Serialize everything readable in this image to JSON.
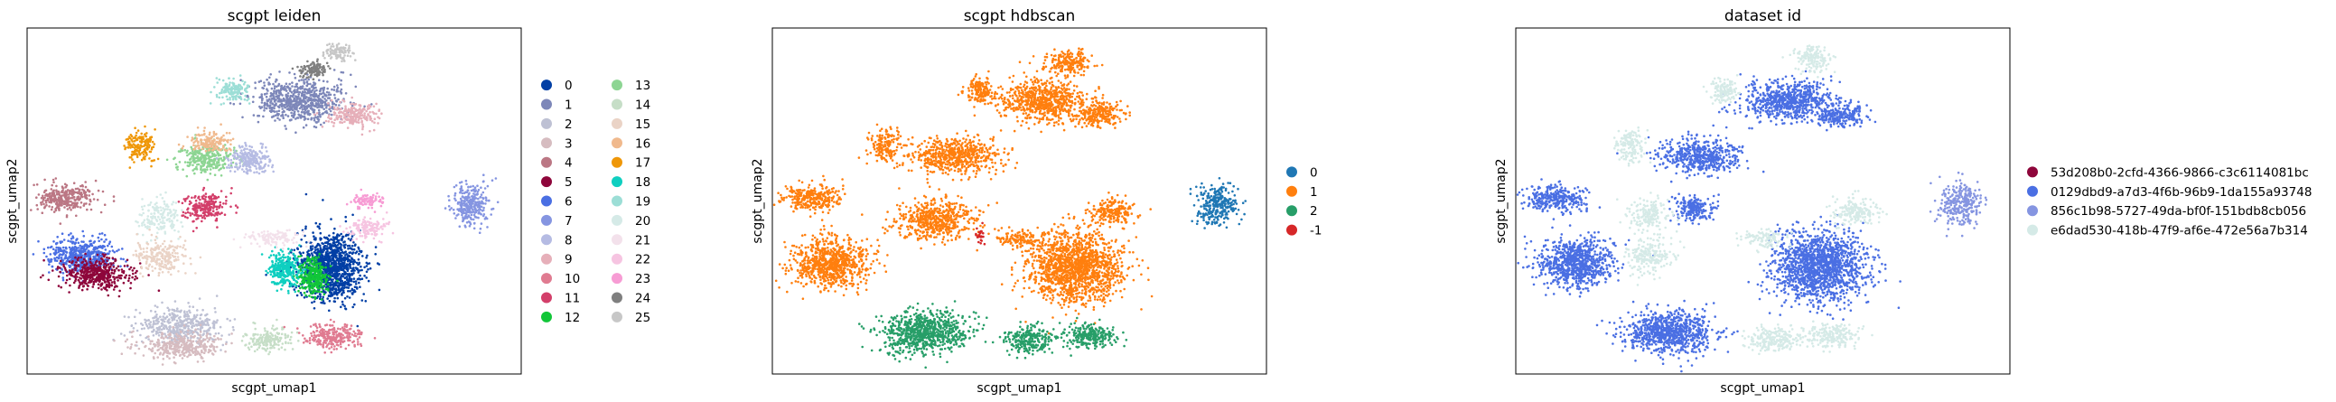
{
  "chart_data": [
    {
      "type": "scatter",
      "title": "scgpt leiden",
      "xlabel": "scgpt_umap1",
      "ylabel": "scgpt_umap2",
      "legend_position": "right",
      "legend_columns": 2,
      "categories": [
        {
          "label": "0",
          "color": "#023fa5"
        },
        {
          "label": "1",
          "color": "#7d87b9"
        },
        {
          "label": "2",
          "color": "#bec1d4"
        },
        {
          "label": "3",
          "color": "#d6bcc0"
        },
        {
          "label": "4",
          "color": "#bb7784"
        },
        {
          "label": "5",
          "color": "#8e063b"
        },
        {
          "label": "6",
          "color": "#4a6fe3"
        },
        {
          "label": "7",
          "color": "#8595e1"
        },
        {
          "label": "8",
          "color": "#b5bbe3"
        },
        {
          "label": "9",
          "color": "#e6afb9"
        },
        {
          "label": "10",
          "color": "#e07b91"
        },
        {
          "label": "11",
          "color": "#d33f6a"
        },
        {
          "label": "12",
          "color": "#11c638"
        },
        {
          "label": "13",
          "color": "#8dd593"
        },
        {
          "label": "14",
          "color": "#c6dec7"
        },
        {
          "label": "15",
          "color": "#ead3c6"
        },
        {
          "label": "16",
          "color": "#f0b98d"
        },
        {
          "label": "17",
          "color": "#ef9708"
        },
        {
          "label": "18",
          "color": "#0fcfc0"
        },
        {
          "label": "19",
          "color": "#9cded6"
        },
        {
          "label": "20",
          "color": "#d5eae7"
        },
        {
          "label": "21",
          "color": "#f3e1eb"
        },
        {
          "label": "22",
          "color": "#f6c4e1"
        },
        {
          "label": "23",
          "color": "#f79cd4"
        },
        {
          "label": "24",
          "color": "#7f7f7f"
        },
        {
          "label": "25",
          "color": "#c7c7c7"
        }
      ],
      "clusters": [
        {
          "c": 0,
          "x": 0.615,
          "y": 0.69,
          "rx": 0.065,
          "ry": 0.1,
          "n": 1100
        },
        {
          "c": 12,
          "x": 0.58,
          "y": 0.72,
          "rx": 0.03,
          "ry": 0.05,
          "n": 300
        },
        {
          "c": 18,
          "x": 0.52,
          "y": 0.7,
          "rx": 0.03,
          "ry": 0.05,
          "n": 300
        },
        {
          "c": 6,
          "x": 0.11,
          "y": 0.66,
          "rx": 0.065,
          "ry": 0.05,
          "n": 500
        },
        {
          "c": 5,
          "x": 0.14,
          "y": 0.71,
          "rx": 0.07,
          "ry": 0.045,
          "n": 450
        },
        {
          "c": 2,
          "x": 0.31,
          "y": 0.86,
          "rx": 0.09,
          "ry": 0.05,
          "n": 450
        },
        {
          "c": 3,
          "x": 0.31,
          "y": 0.92,
          "rx": 0.08,
          "ry": 0.035,
          "n": 350
        },
        {
          "c": 14,
          "x": 0.49,
          "y": 0.9,
          "rx": 0.045,
          "ry": 0.035,
          "n": 180
        },
        {
          "c": 10,
          "x": 0.62,
          "y": 0.89,
          "rx": 0.055,
          "ry": 0.035,
          "n": 250
        },
        {
          "c": 1,
          "x": 0.55,
          "y": 0.21,
          "rx": 0.09,
          "ry": 0.06,
          "n": 700
        },
        {
          "c": 9,
          "x": 0.66,
          "y": 0.25,
          "rx": 0.05,
          "ry": 0.035,
          "n": 220
        },
        {
          "c": 19,
          "x": 0.42,
          "y": 0.18,
          "rx": 0.03,
          "ry": 0.035,
          "n": 150
        },
        {
          "c": 24,
          "x": 0.58,
          "y": 0.12,
          "rx": 0.03,
          "ry": 0.025,
          "n": 110
        },
        {
          "c": 25,
          "x": 0.63,
          "y": 0.07,
          "rx": 0.025,
          "ry": 0.025,
          "n": 100
        },
        {
          "c": 13,
          "x": 0.36,
          "y": 0.38,
          "rx": 0.055,
          "ry": 0.04,
          "n": 280
        },
        {
          "c": 16,
          "x": 0.37,
          "y": 0.33,
          "rx": 0.045,
          "ry": 0.03,
          "n": 160
        },
        {
          "c": 8,
          "x": 0.45,
          "y": 0.38,
          "rx": 0.045,
          "ry": 0.04,
          "n": 220
        },
        {
          "c": 17,
          "x": 0.23,
          "y": 0.34,
          "rx": 0.03,
          "ry": 0.05,
          "n": 160
        },
        {
          "c": 4,
          "x": 0.08,
          "y": 0.49,
          "rx": 0.06,
          "ry": 0.04,
          "n": 300
        },
        {
          "c": 11,
          "x": 0.36,
          "y": 0.52,
          "rx": 0.04,
          "ry": 0.04,
          "n": 220
        },
        {
          "c": 20,
          "x": 0.27,
          "y": 0.54,
          "rx": 0.045,
          "ry": 0.05,
          "n": 160
        },
        {
          "c": 15,
          "x": 0.27,
          "y": 0.66,
          "rx": 0.05,
          "ry": 0.05,
          "n": 220
        },
        {
          "c": 21,
          "x": 0.5,
          "y": 0.61,
          "rx": 0.05,
          "ry": 0.025,
          "n": 120
        },
        {
          "c": 23,
          "x": 0.69,
          "y": 0.5,
          "rx": 0.03,
          "ry": 0.02,
          "n": 90
        },
        {
          "c": 22,
          "x": 0.69,
          "y": 0.58,
          "rx": 0.04,
          "ry": 0.03,
          "n": 130
        },
        {
          "c": 7,
          "x": 0.9,
          "y": 0.51,
          "rx": 0.04,
          "ry": 0.06,
          "n": 280
        }
      ]
    },
    {
      "type": "scatter",
      "title": "scgpt hdbscan",
      "xlabel": "scgpt_umap1",
      "ylabel": "scgpt_umap2",
      "legend_position": "right",
      "legend_columns": 1,
      "categories": [
        {
          "label": "0",
          "color": "#1f77b4"
        },
        {
          "label": "1",
          "color": "#ff7f0e"
        },
        {
          "label": "2",
          "color": "#279e68"
        },
        {
          "label": "-1",
          "color": "#d62728"
        }
      ],
      "clusters": [
        {
          "c": 1,
          "x": 0.615,
          "y": 0.69,
          "rx": 0.095,
          "ry": 0.1,
          "n": 1500
        },
        {
          "c": 1,
          "x": 0.12,
          "y": 0.68,
          "rx": 0.075,
          "ry": 0.07,
          "n": 800
        },
        {
          "c": 1,
          "x": 0.55,
          "y": 0.21,
          "rx": 0.09,
          "ry": 0.06,
          "n": 700
        },
        {
          "c": 1,
          "x": 0.66,
          "y": 0.25,
          "rx": 0.05,
          "ry": 0.035,
          "n": 220
        },
        {
          "c": 1,
          "x": 0.42,
          "y": 0.18,
          "rx": 0.03,
          "ry": 0.035,
          "n": 150
        },
        {
          "c": 1,
          "x": 0.6,
          "y": 0.1,
          "rx": 0.045,
          "ry": 0.035,
          "n": 200
        },
        {
          "c": 1,
          "x": 0.37,
          "y": 0.37,
          "rx": 0.09,
          "ry": 0.05,
          "n": 600
        },
        {
          "c": 1,
          "x": 0.23,
          "y": 0.34,
          "rx": 0.03,
          "ry": 0.05,
          "n": 160
        },
        {
          "c": 1,
          "x": 0.08,
          "y": 0.49,
          "rx": 0.06,
          "ry": 0.04,
          "n": 300
        },
        {
          "c": 1,
          "x": 0.33,
          "y": 0.55,
          "rx": 0.08,
          "ry": 0.06,
          "n": 550
        },
        {
          "c": 1,
          "x": 0.5,
          "y": 0.61,
          "rx": 0.05,
          "ry": 0.025,
          "n": 120
        },
        {
          "c": 1,
          "x": 0.69,
          "y": 0.53,
          "rx": 0.045,
          "ry": 0.04,
          "n": 200
        },
        {
          "c": 2,
          "x": 0.31,
          "y": 0.88,
          "rx": 0.09,
          "ry": 0.06,
          "n": 800
        },
        {
          "c": 2,
          "x": 0.52,
          "y": 0.9,
          "rx": 0.05,
          "ry": 0.035,
          "n": 250
        },
        {
          "c": 2,
          "x": 0.64,
          "y": 0.89,
          "rx": 0.055,
          "ry": 0.035,
          "n": 250
        },
        {
          "c": 0,
          "x": 0.9,
          "y": 0.51,
          "rx": 0.04,
          "ry": 0.06,
          "n": 280
        },
        {
          "c": 3,
          "x": 0.42,
          "y": 0.6,
          "rx": 0.01,
          "ry": 0.02,
          "n": 25
        }
      ]
    },
    {
      "type": "scatter",
      "title": "dataset id",
      "xlabel": "scgpt_umap1",
      "ylabel": "scgpt_umap2",
      "legend_position": "right",
      "legend_columns": 1,
      "categories": [
        {
          "label": "53d208b0-2cfd-4366-9866-c3c6114081bc",
          "color": "#8e063b"
        },
        {
          "label": "0129dbd9-a7d3-4f6b-96b9-1da155a93748",
          "color": "#4a6fe3"
        },
        {
          "label": "856c1b98-5727-49da-bf0f-151bdb8cb056",
          "color": "#8595e1"
        },
        {
          "label": "e6dad530-418b-47f9-af6e-472e56a7b314",
          "color": "#d5eae7"
        }
      ],
      "clusters": [
        {
          "c": 1,
          "x": 0.615,
          "y": 0.69,
          "rx": 0.095,
          "ry": 0.1,
          "n": 1500
        },
        {
          "c": 1,
          "x": 0.12,
          "y": 0.68,
          "rx": 0.075,
          "ry": 0.07,
          "n": 800
        },
        {
          "c": 1,
          "x": 0.55,
          "y": 0.21,
          "rx": 0.09,
          "ry": 0.06,
          "n": 700
        },
        {
          "c": 1,
          "x": 0.66,
          "y": 0.25,
          "rx": 0.05,
          "ry": 0.035,
          "n": 220
        },
        {
          "c": 1,
          "x": 0.37,
          "y": 0.37,
          "rx": 0.08,
          "ry": 0.05,
          "n": 500
        },
        {
          "c": 1,
          "x": 0.08,
          "y": 0.49,
          "rx": 0.06,
          "ry": 0.04,
          "n": 300
        },
        {
          "c": 1,
          "x": 0.36,
          "y": 0.52,
          "rx": 0.04,
          "ry": 0.04,
          "n": 200
        },
        {
          "c": 1,
          "x": 0.31,
          "y": 0.88,
          "rx": 0.09,
          "ry": 0.06,
          "n": 800
        },
        {
          "c": 3,
          "x": 0.52,
          "y": 0.9,
          "rx": 0.05,
          "ry": 0.035,
          "n": 200
        },
        {
          "c": 3,
          "x": 0.64,
          "y": 0.89,
          "rx": 0.055,
          "ry": 0.035,
          "n": 200
        },
        {
          "c": 3,
          "x": 0.42,
          "y": 0.18,
          "rx": 0.03,
          "ry": 0.035,
          "n": 130
        },
        {
          "c": 3,
          "x": 0.6,
          "y": 0.09,
          "rx": 0.04,
          "ry": 0.035,
          "n": 150
        },
        {
          "c": 3,
          "x": 0.23,
          "y": 0.34,
          "rx": 0.03,
          "ry": 0.05,
          "n": 140
        },
        {
          "c": 3,
          "x": 0.27,
          "y": 0.54,
          "rx": 0.045,
          "ry": 0.05,
          "n": 160
        },
        {
          "c": 3,
          "x": 0.27,
          "y": 0.66,
          "rx": 0.05,
          "ry": 0.05,
          "n": 200
        },
        {
          "c": 3,
          "x": 0.69,
          "y": 0.53,
          "rx": 0.045,
          "ry": 0.04,
          "n": 180
        },
        {
          "c": 3,
          "x": 0.5,
          "y": 0.61,
          "rx": 0.05,
          "ry": 0.025,
          "n": 100
        },
        {
          "c": 2,
          "x": 0.9,
          "y": 0.51,
          "rx": 0.04,
          "ry": 0.06,
          "n": 280
        }
      ]
    }
  ]
}
